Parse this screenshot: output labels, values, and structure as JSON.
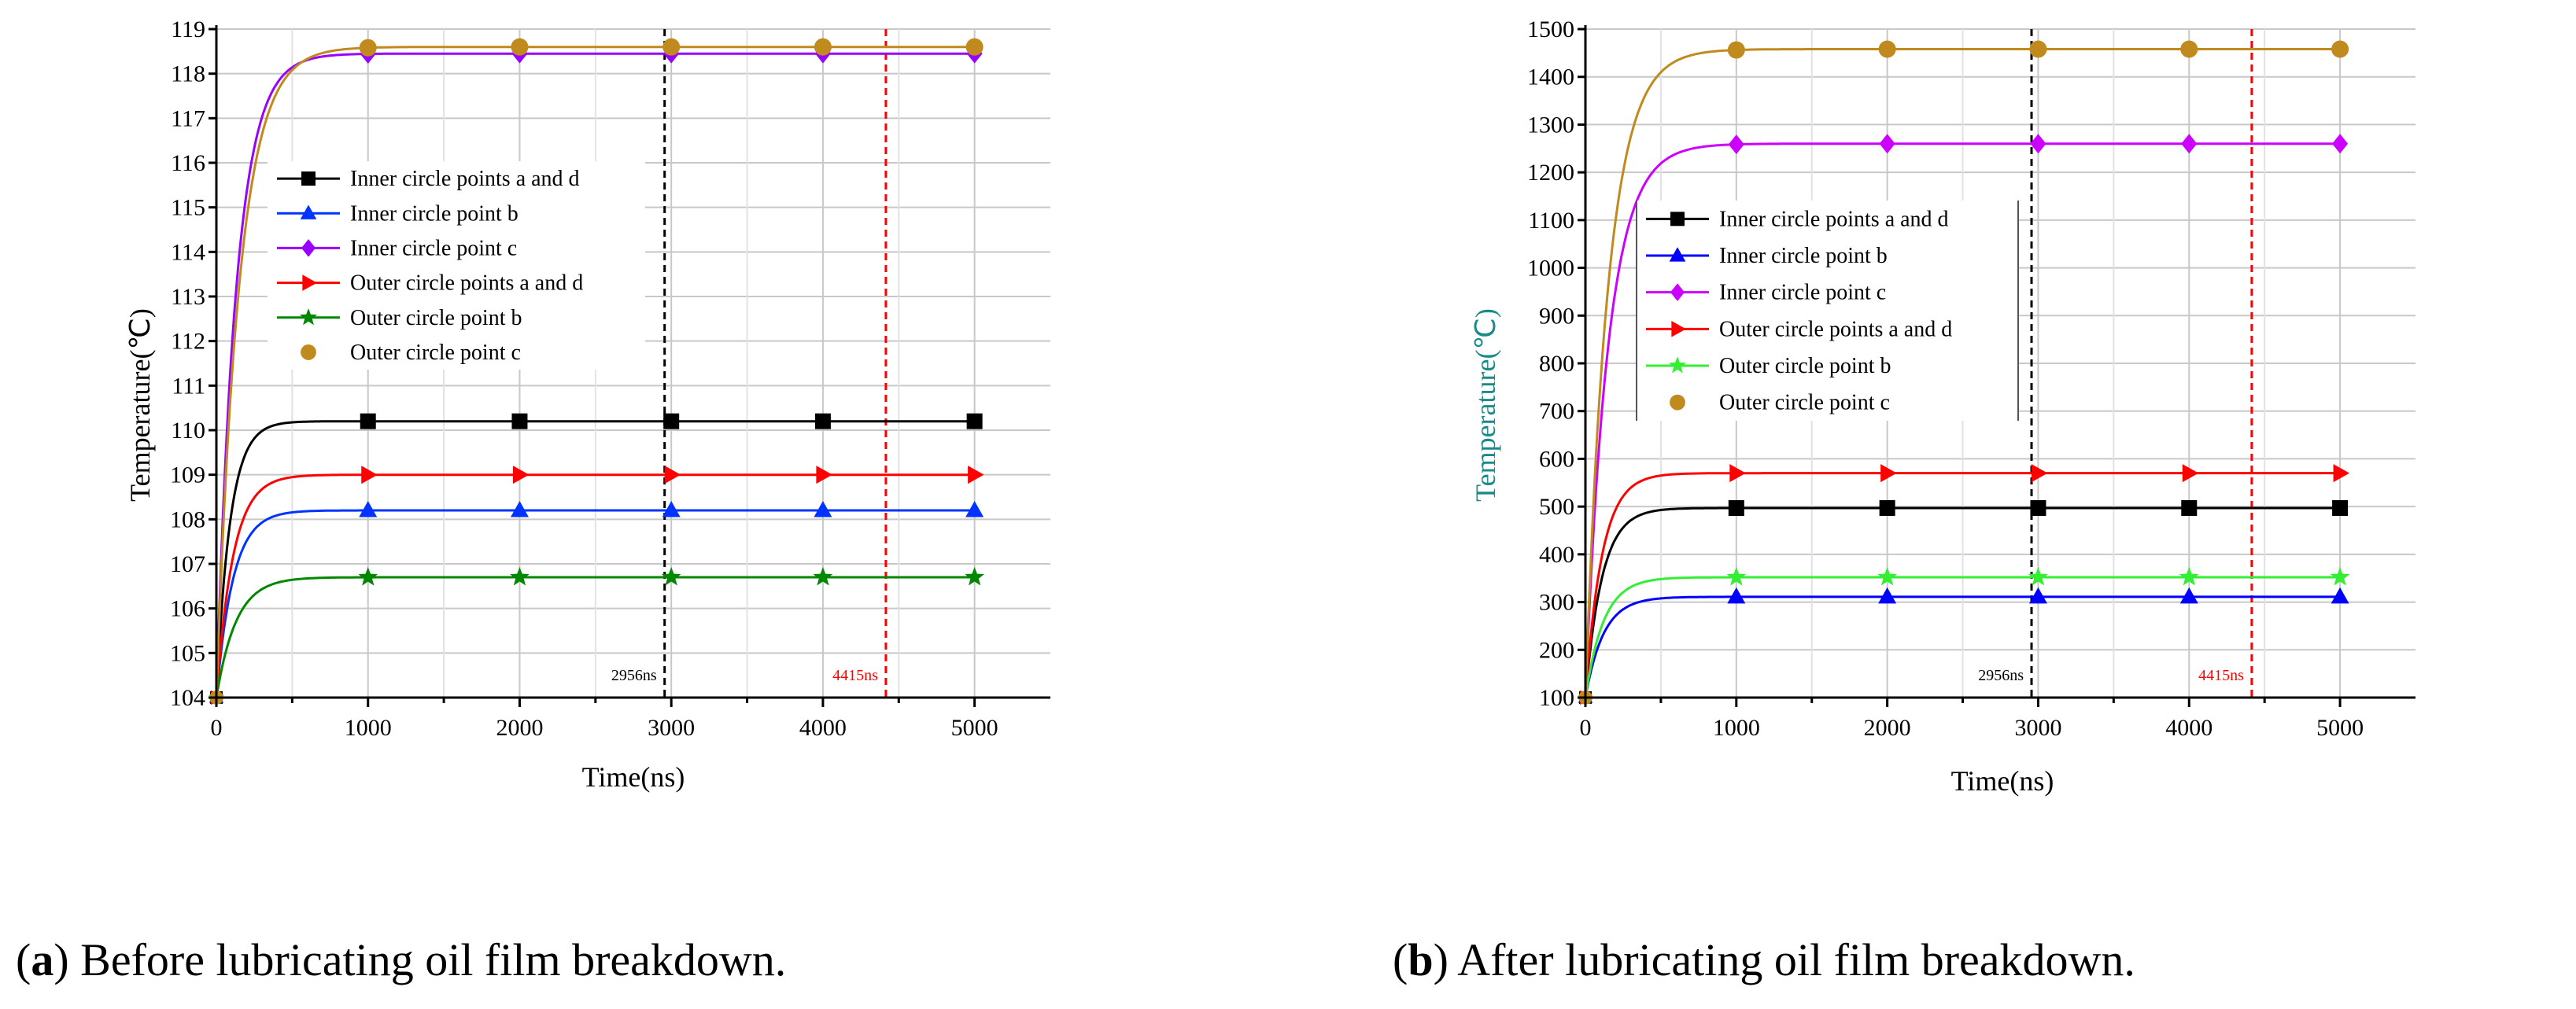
{
  "chart_data": [
    {
      "type": "line",
      "panel": "a",
      "xlabel": "Time(ns)",
      "ylabel": "Temperature(℃)",
      "xlim": [
        0,
        5500
      ],
      "ylim": [
        104,
        119
      ],
      "xticks": [
        0,
        1000,
        2000,
        3000,
        4000,
        5000
      ],
      "yticks": [
        104,
        105,
        106,
        107,
        108,
        109,
        110,
        111,
        112,
        113,
        114,
        115,
        116,
        117,
        118,
        119
      ],
      "annotations": [
        {
          "label": "2956ns",
          "x": 2956,
          "color": "#000000"
        },
        {
          "label": "4415ns",
          "x": 4415,
          "color": "#ff0000"
        }
      ],
      "series": [
        {
          "name": "Inner circle points a and d",
          "color": "#000000",
          "marker": "square",
          "start": 104,
          "final": 110.2,
          "tau": 90
        },
        {
          "name": "Inner circle point b",
          "color": "#0033ff",
          "marker": "triangle",
          "start": 104,
          "final": 108.2,
          "tau": 110
        },
        {
          "name": "Inner circle point c",
          "color": "#9900ff",
          "marker": "diamond",
          "start": 104,
          "final": 118.45,
          "tau": 130
        },
        {
          "name": "Outer circle points a and d",
          "color": "#ff0000",
          "marker": "tri-right",
          "start": 104,
          "final": 109.0,
          "tau": 110
        },
        {
          "name": "Outer circle point b",
          "color": "#008800",
          "marker": "star",
          "start": 104,
          "final": 106.7,
          "tau": 130
        },
        {
          "name": "Outer circle point c",
          "color": "#c08a1e",
          "marker": "circle",
          "start": 104,
          "final": 118.6,
          "tau": 150
        }
      ]
    },
    {
      "type": "line",
      "panel": "b",
      "xlabel": "Time(ns)",
      "ylabel": "Temperature(℃)",
      "xlim": [
        0,
        5500
      ],
      "ylim": [
        100,
        1500
      ],
      "xticks": [
        0,
        1000,
        2000,
        3000,
        4000,
        5000
      ],
      "yticks": [
        100,
        200,
        300,
        400,
        500,
        600,
        700,
        800,
        900,
        1000,
        1100,
        1200,
        1300,
        1400,
        1500
      ],
      "annotations": [
        {
          "label": "2956ns",
          "x": 2956,
          "color": "#000000"
        },
        {
          "label": "4415ns",
          "x": 4415,
          "color": "#ff0000"
        }
      ],
      "series": [
        {
          "name": "Inner circle points a and d",
          "color": "#000000",
          "marker": "square",
          "start": 100,
          "final": 497,
          "tau": 110
        },
        {
          "name": "Inner circle point b",
          "color": "#0000ff",
          "marker": "triangle",
          "start": 100,
          "final": 311,
          "tau": 120
        },
        {
          "name": "Inner circle point c",
          "color": "#cc00ff",
          "marker": "diamond",
          "start": 100,
          "final": 1260,
          "tau": 150
        },
        {
          "name": "Outer circle points a and d",
          "color": "#ff0000",
          "marker": "tri-right",
          "start": 100,
          "final": 570,
          "tau": 110
        },
        {
          "name": "Outer circle point b",
          "color": "#33ee33",
          "marker": "star",
          "start": 100,
          "final": 352,
          "tau": 120
        },
        {
          "name": "Outer circle point c",
          "color": "#c08a1e",
          "marker": "circle",
          "start": 100,
          "final": 1458,
          "tau": 150
        }
      ]
    }
  ],
  "captions": {
    "a": {
      "label": "a",
      "text": ") Before lubricating oil film breakdown."
    },
    "b": {
      "label": "b",
      "text": ") After lubricating oil film breakdown."
    }
  }
}
